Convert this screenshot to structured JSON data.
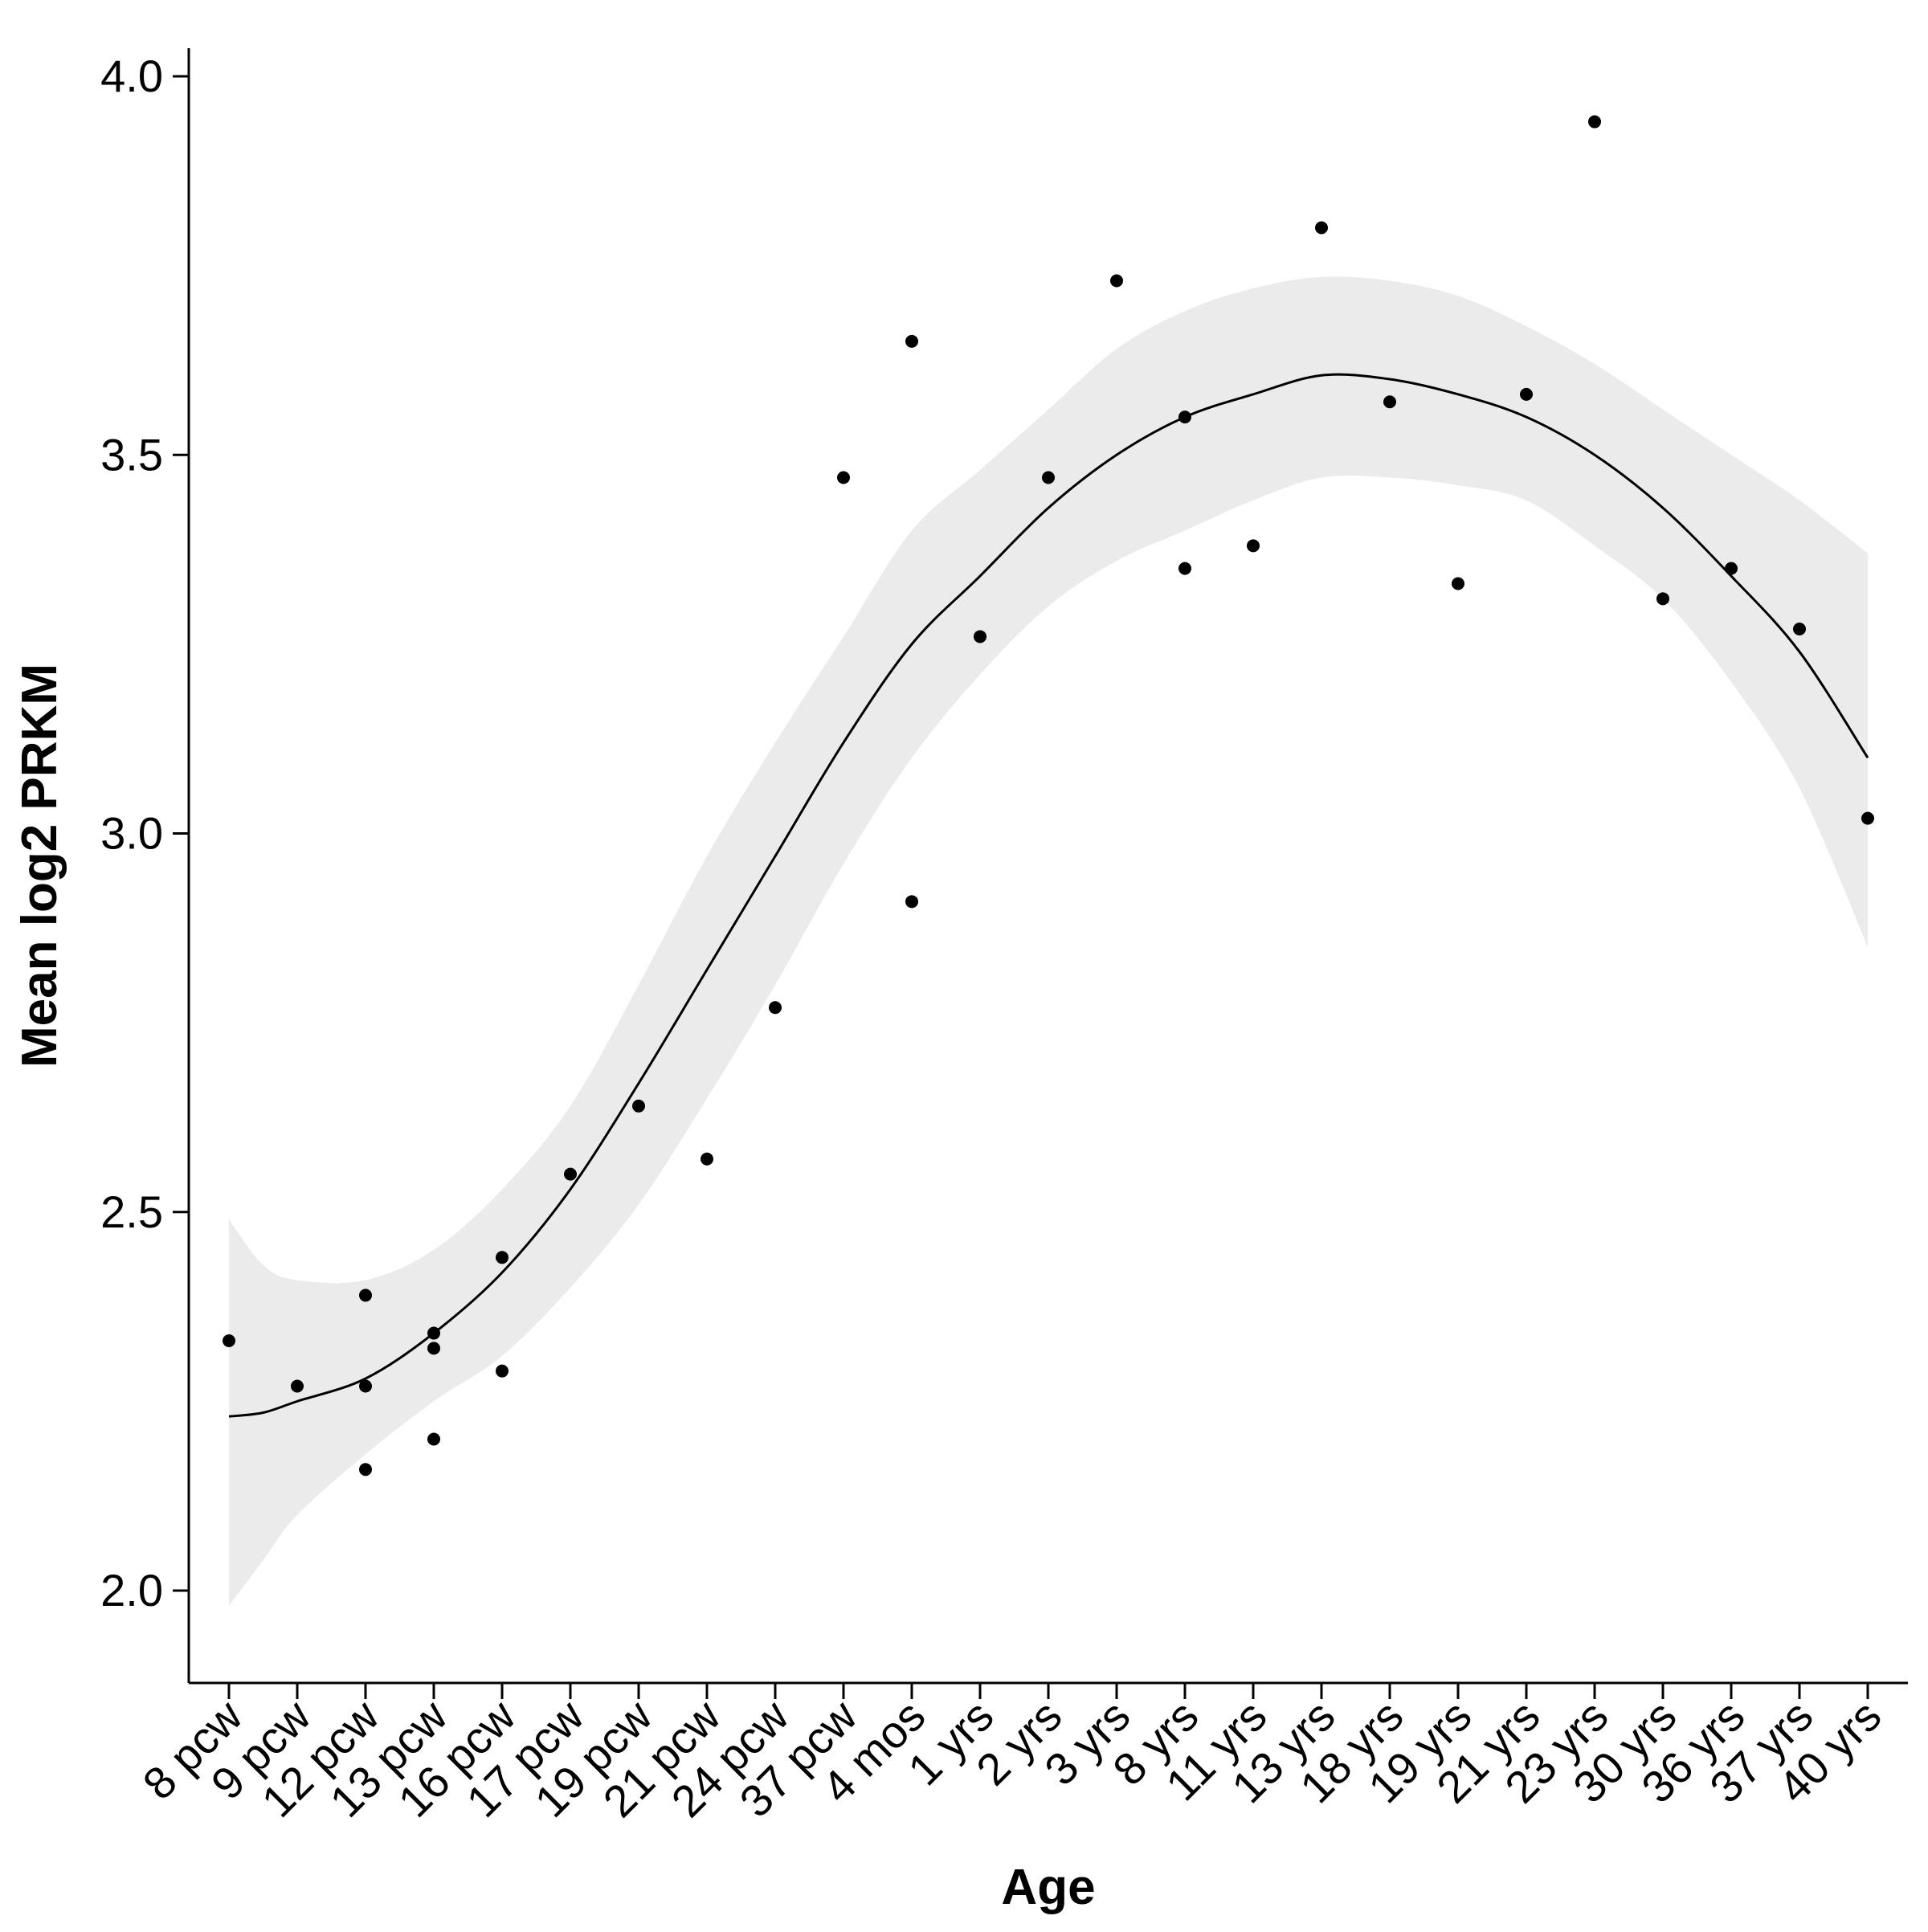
{
  "chart_data": {
    "type": "scatter",
    "title": "",
    "xlabel": "Age",
    "ylabel": "Mean log2 PRKM",
    "categories": [
      "8 pcw",
      "9 pcw",
      "12 pcw",
      "13 pcw",
      "16 pcw",
      "17 pcw",
      "19 pcw",
      "21 pcw",
      "24 pcw",
      "37 pcw",
      "4 mos",
      "1 yrs",
      "2 yrs",
      "3 yrs",
      "8 yrs",
      "11 yrs",
      "13 yrs",
      "18 yrs",
      "19 yrs",
      "21 yrs",
      "23 yrs",
      "30 yrs",
      "36 yrs",
      "37 yrs",
      "40 yrs"
    ],
    "ylim": [
      1.88,
      4.04
    ],
    "yticks": [
      "2.0",
      "2.5",
      "3.0",
      "3.5",
      "4.0"
    ],
    "grid": false,
    "legend": "none",
    "points": [
      {
        "x": "8 pcw",
        "y": 2.33
      },
      {
        "x": "9 pcw",
        "y": 2.27
      },
      {
        "x": "12 pcw",
        "y": 2.39
      },
      {
        "x": "12 pcw",
        "y": 2.27
      },
      {
        "x": "12 pcw",
        "y": 2.16
      },
      {
        "x": "13 pcw",
        "y": 2.34
      },
      {
        "x": "13 pcw",
        "y": 2.32
      },
      {
        "x": "13 pcw",
        "y": 2.2
      },
      {
        "x": "16 pcw",
        "y": 2.44
      },
      {
        "x": "16 pcw",
        "y": 2.29
      },
      {
        "x": "17 pcw",
        "y": 2.55
      },
      {
        "x": "19 pcw",
        "y": 2.64
      },
      {
        "x": "21 pcw",
        "y": 2.57
      },
      {
        "x": "24 pcw",
        "y": 2.77
      },
      {
        "x": "37 pcw",
        "y": 3.47
      },
      {
        "x": "4 mos",
        "y": 3.65
      },
      {
        "x": "4 mos",
        "y": 2.91
      },
      {
        "x": "1 yrs",
        "y": 3.26
      },
      {
        "x": "2 yrs",
        "y": 3.47
      },
      {
        "x": "3 yrs",
        "y": 3.73
      },
      {
        "x": "8 yrs",
        "y": 3.55
      },
      {
        "x": "8 yrs",
        "y": 3.35
      },
      {
        "x": "11 yrs",
        "y": 3.38
      },
      {
        "x": "13 yrs",
        "y": 3.8
      },
      {
        "x": "18 yrs",
        "y": 3.57
      },
      {
        "x": "19 yrs",
        "y": 3.33
      },
      {
        "x": "21 yrs",
        "y": 3.58
      },
      {
        "x": "23 yrs",
        "y": 3.94
      },
      {
        "x": "30 yrs",
        "y": 3.31
      },
      {
        "x": "36 yrs",
        "y": 3.35
      },
      {
        "x": "37 yrs",
        "y": 3.27
      },
      {
        "x": "40 yrs",
        "y": 3.02
      }
    ],
    "smooth_fit": {
      "x_index": [
        0,
        0.5,
        1,
        2,
        3,
        4,
        5,
        6,
        7,
        8,
        9,
        10,
        11,
        12,
        13,
        14,
        15,
        16,
        17,
        18,
        19,
        20,
        21,
        22,
        23,
        24
      ],
      "y": [
        2.23,
        2.235,
        2.25,
        2.28,
        2.34,
        2.42,
        2.53,
        2.67,
        2.82,
        2.97,
        3.12,
        3.25,
        3.34,
        3.43,
        3.5,
        3.55,
        3.58,
        3.605,
        3.6,
        3.58,
        3.55,
        3.5,
        3.43,
        3.34,
        3.24,
        3.1
      ],
      "lower": [
        1.98,
        2.04,
        2.1,
        2.18,
        2.25,
        2.31,
        2.4,
        2.51,
        2.65,
        2.8,
        2.96,
        3.1,
        3.21,
        3.3,
        3.36,
        3.4,
        3.44,
        3.47,
        3.47,
        3.46,
        3.44,
        3.38,
        3.31,
        3.2,
        3.06,
        2.85
      ],
      "upper": [
        2.49,
        2.43,
        2.41,
        2.41,
        2.45,
        2.53,
        2.64,
        2.8,
        2.97,
        3.12,
        3.26,
        3.4,
        3.48,
        3.56,
        3.64,
        3.69,
        3.72,
        3.735,
        3.73,
        3.71,
        3.67,
        3.62,
        3.56,
        3.5,
        3.44,
        3.37
      ]
    },
    "colors": {
      "points": "#000000",
      "line": "#000000",
      "ribbon": "#ebebeb",
      "axis": "#000000"
    }
  }
}
